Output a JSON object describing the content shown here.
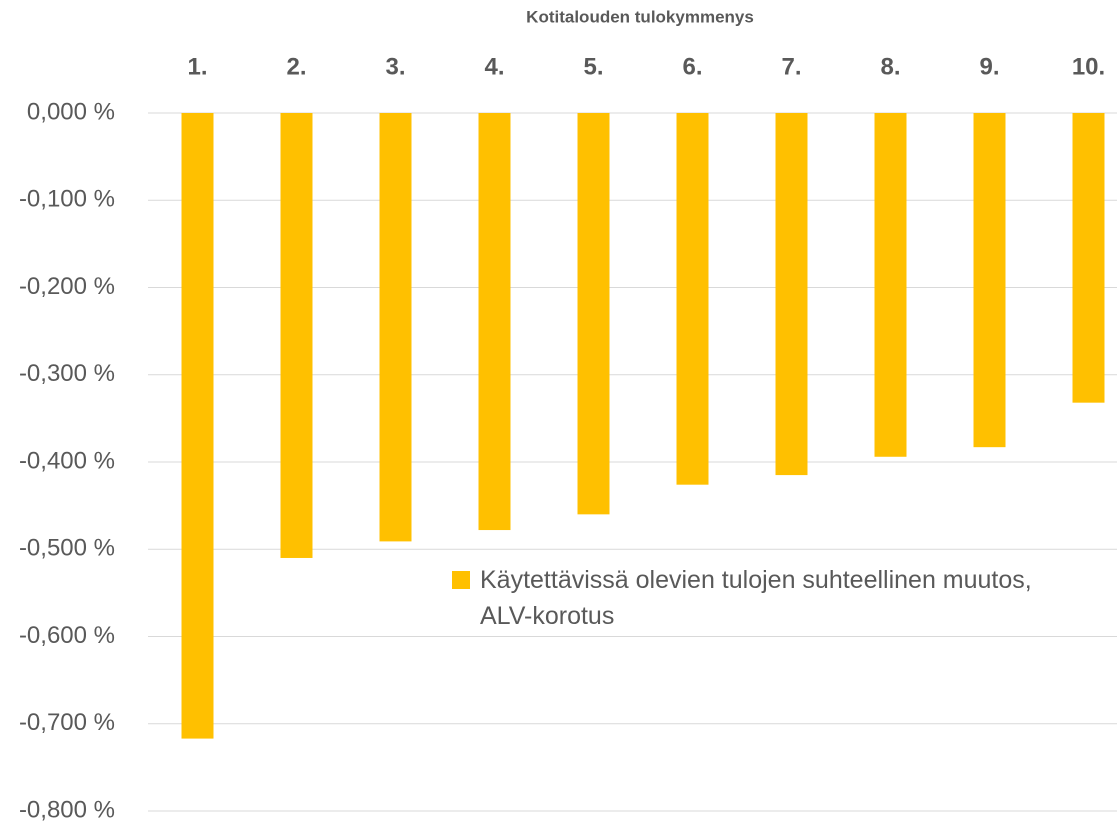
{
  "chart_data": {
    "type": "bar",
    "x_axis_title": "Kotitalouden tulokymmenys",
    "categories": [
      "1.",
      "2.",
      "3.",
      "4.",
      "5.",
      "6.",
      "7.",
      "8.",
      "9.",
      "10."
    ],
    "series": [
      {
        "name": "Käytettävissä olevien tulojen suhteellinen muutos, ALV-korotus",
        "color": "#ffc000",
        "values": [
          -0.717,
          -0.51,
          -0.491,
          -0.478,
          -0.46,
          -0.426,
          -0.415,
          -0.394,
          -0.383,
          -0.332
        ]
      }
    ],
    "ylim": [
      -0.8,
      0
    ],
    "yticks": [
      {
        "value": 0,
        "label": "0,000 %"
      },
      {
        "value": -0.1,
        "label": "-0,100 %"
      },
      {
        "value": -0.2,
        "label": "-0,200 %"
      },
      {
        "value": -0.3,
        "label": "-0,300 %"
      },
      {
        "value": -0.4,
        "label": "-0,400 %"
      },
      {
        "value": -0.5,
        "label": "-0,500 %"
      },
      {
        "value": -0.6,
        "label": "-0,600 %"
      },
      {
        "value": -0.7,
        "label": "-0,700 %"
      },
      {
        "value": -0.8,
        "label": "-0,800 %"
      }
    ],
    "grid": true
  }
}
